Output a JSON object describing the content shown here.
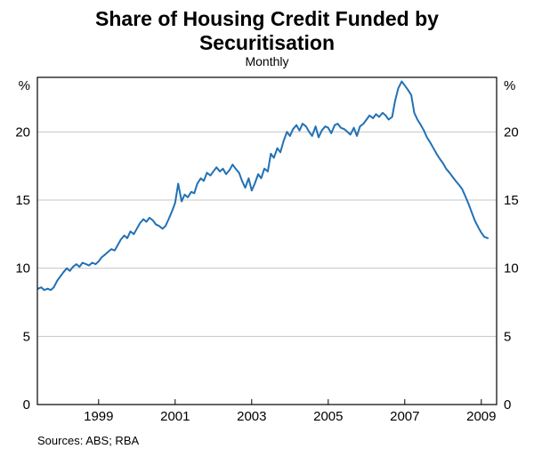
{
  "header": {
    "title": "Share of Housing Credit Funded by Securitisation",
    "subtitle": "Monthly"
  },
  "footer": {
    "sources": "Sources: ABS; RBA"
  },
  "chart_data": {
    "type": "line",
    "title": "Share of Housing Credit Funded by Securitisation",
    "subtitle": "Monthly",
    "unit_label": "%",
    "xlabel": "",
    "ylabel": "%",
    "xlim": [
      1997.4,
      2009.4
    ],
    "ylim": [
      0,
      24
    ],
    "x_ticks": [
      "1999",
      "2001",
      "2003",
      "2005",
      "2007",
      "2009"
    ],
    "x_tick_values": [
      1999,
      2001,
      2003,
      2005,
      2007,
      2009
    ],
    "y_ticks": [
      0,
      5,
      10,
      15,
      20
    ],
    "grid": "horizontal",
    "legend": "none",
    "colors": {
      "line": "#2171b5",
      "grid": "#c6c6c6",
      "axis": "#000000",
      "text": "#000000"
    },
    "sources": "Sources: ABS; RBA",
    "series": [
      {
        "name": "Share of housing credit funded by securitisation (%)",
        "points": [
          [
            1997.42,
            8.5
          ],
          [
            1997.5,
            8.6
          ],
          [
            1997.58,
            8.4
          ],
          [
            1997.67,
            8.5
          ],
          [
            1997.75,
            8.4
          ],
          [
            1997.83,
            8.6
          ],
          [
            1997.92,
            9.1
          ],
          [
            1998.0,
            9.4
          ],
          [
            1998.08,
            9.7
          ],
          [
            1998.17,
            10.0
          ],
          [
            1998.25,
            9.8
          ],
          [
            1998.33,
            10.1
          ],
          [
            1998.42,
            10.3
          ],
          [
            1998.5,
            10.1
          ],
          [
            1998.58,
            10.4
          ],
          [
            1998.67,
            10.3
          ],
          [
            1998.75,
            10.2
          ],
          [
            1998.83,
            10.4
          ],
          [
            1998.92,
            10.3
          ],
          [
            1999.0,
            10.5
          ],
          [
            1999.08,
            10.8
          ],
          [
            1999.17,
            11.0
          ],
          [
            1999.25,
            11.2
          ],
          [
            1999.33,
            11.4
          ],
          [
            1999.42,
            11.3
          ],
          [
            1999.5,
            11.7
          ],
          [
            1999.58,
            12.1
          ],
          [
            1999.67,
            12.4
          ],
          [
            1999.75,
            12.2
          ],
          [
            1999.83,
            12.7
          ],
          [
            1999.92,
            12.5
          ],
          [
            2000.0,
            12.9
          ],
          [
            2000.08,
            13.3
          ],
          [
            2000.17,
            13.6
          ],
          [
            2000.25,
            13.4
          ],
          [
            2000.33,
            13.7
          ],
          [
            2000.42,
            13.5
          ],
          [
            2000.5,
            13.2
          ],
          [
            2000.58,
            13.1
          ],
          [
            2000.67,
            12.9
          ],
          [
            2000.75,
            13.1
          ],
          [
            2000.83,
            13.6
          ],
          [
            2000.92,
            14.2
          ],
          [
            2001.0,
            14.8
          ],
          [
            2001.08,
            16.2
          ],
          [
            2001.17,
            14.9
          ],
          [
            2001.25,
            15.4
          ],
          [
            2001.33,
            15.2
          ],
          [
            2001.42,
            15.6
          ],
          [
            2001.5,
            15.5
          ],
          [
            2001.58,
            16.2
          ],
          [
            2001.67,
            16.6
          ],
          [
            2001.75,
            16.4
          ],
          [
            2001.83,
            17.0
          ],
          [
            2001.92,
            16.8
          ],
          [
            2002.0,
            17.1
          ],
          [
            2002.08,
            17.4
          ],
          [
            2002.17,
            17.1
          ],
          [
            2002.25,
            17.3
          ],
          [
            2002.33,
            16.9
          ],
          [
            2002.42,
            17.2
          ],
          [
            2002.5,
            17.6
          ],
          [
            2002.58,
            17.3
          ],
          [
            2002.67,
            17.0
          ],
          [
            2002.75,
            16.4
          ],
          [
            2002.83,
            15.9
          ],
          [
            2002.92,
            16.6
          ],
          [
            2003.0,
            15.7
          ],
          [
            2003.08,
            16.2
          ],
          [
            2003.17,
            16.9
          ],
          [
            2003.25,
            16.6
          ],
          [
            2003.33,
            17.3
          ],
          [
            2003.42,
            17.1
          ],
          [
            2003.5,
            18.4
          ],
          [
            2003.58,
            18.1
          ],
          [
            2003.67,
            18.8
          ],
          [
            2003.75,
            18.5
          ],
          [
            2003.83,
            19.3
          ],
          [
            2003.92,
            20.0
          ],
          [
            2004.0,
            19.7
          ],
          [
            2004.08,
            20.2
          ],
          [
            2004.17,
            20.5
          ],
          [
            2004.25,
            20.1
          ],
          [
            2004.33,
            20.6
          ],
          [
            2004.42,
            20.4
          ],
          [
            2004.5,
            20.0
          ],
          [
            2004.58,
            19.7
          ],
          [
            2004.67,
            20.4
          ],
          [
            2004.75,
            19.6
          ],
          [
            2004.83,
            20.1
          ],
          [
            2004.92,
            20.4
          ],
          [
            2005.0,
            20.3
          ],
          [
            2005.08,
            19.9
          ],
          [
            2005.17,
            20.5
          ],
          [
            2005.25,
            20.6
          ],
          [
            2005.33,
            20.3
          ],
          [
            2005.42,
            20.2
          ],
          [
            2005.5,
            20.0
          ],
          [
            2005.58,
            19.8
          ],
          [
            2005.67,
            20.3
          ],
          [
            2005.75,
            19.7
          ],
          [
            2005.83,
            20.4
          ],
          [
            2005.92,
            20.6
          ],
          [
            2006.0,
            20.9
          ],
          [
            2006.08,
            21.2
          ],
          [
            2006.17,
            21.0
          ],
          [
            2006.25,
            21.3
          ],
          [
            2006.33,
            21.1
          ],
          [
            2006.42,
            21.4
          ],
          [
            2006.5,
            21.2
          ],
          [
            2006.58,
            20.9
          ],
          [
            2006.67,
            21.1
          ],
          [
            2006.75,
            22.3
          ],
          [
            2006.83,
            23.2
          ],
          [
            2006.92,
            23.7
          ],
          [
            2007.0,
            23.4
          ],
          [
            2007.08,
            23.1
          ],
          [
            2007.17,
            22.7
          ],
          [
            2007.25,
            21.4
          ],
          [
            2007.33,
            20.9
          ],
          [
            2007.42,
            20.5
          ],
          [
            2007.5,
            20.1
          ],
          [
            2007.58,
            19.6
          ],
          [
            2007.67,
            19.2
          ],
          [
            2007.75,
            18.8
          ],
          [
            2007.83,
            18.4
          ],
          [
            2007.92,
            18.0
          ],
          [
            2008.0,
            17.7
          ],
          [
            2008.08,
            17.3
          ],
          [
            2008.17,
            17.0
          ],
          [
            2008.25,
            16.7
          ],
          [
            2008.33,
            16.4
          ],
          [
            2008.42,
            16.1
          ],
          [
            2008.5,
            15.8
          ],
          [
            2008.58,
            15.3
          ],
          [
            2008.67,
            14.7
          ],
          [
            2008.75,
            14.1
          ],
          [
            2008.83,
            13.5
          ],
          [
            2008.92,
            13.0
          ],
          [
            2009.0,
            12.6
          ],
          [
            2009.08,
            12.3
          ],
          [
            2009.17,
            12.2
          ]
        ]
      }
    ]
  }
}
